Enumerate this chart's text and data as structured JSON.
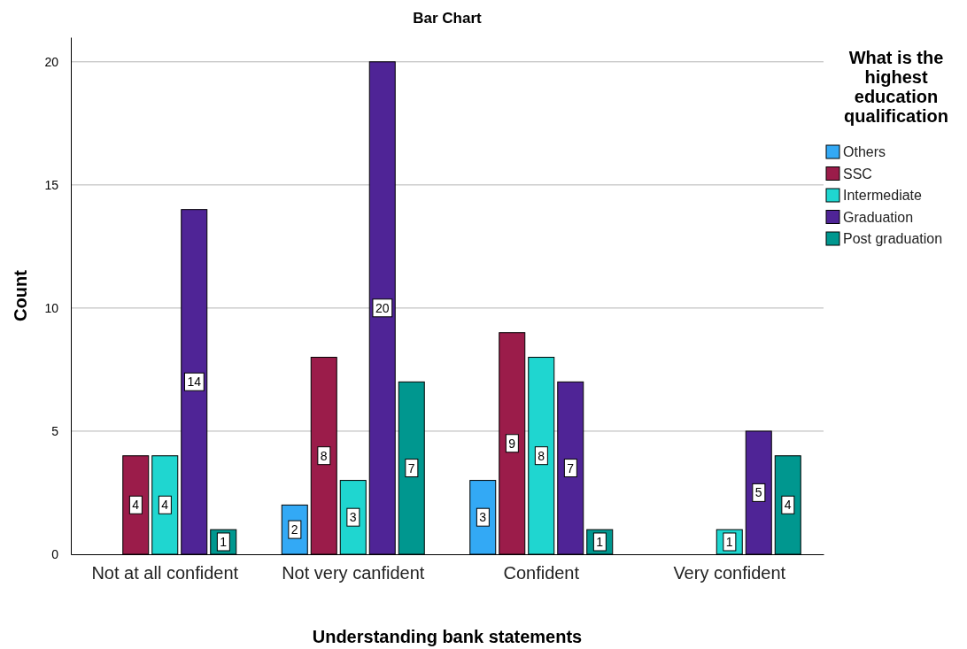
{
  "chart_data": {
    "type": "bar",
    "title": "Bar Chart",
    "xlabel": "Understanding bank statements",
    "ylabel": "Count",
    "legend_title": "What is the highest education qualification",
    "categories": [
      "Not at all confident",
      "Not very canfident",
      "Confident",
      "Very confident"
    ],
    "series": [
      {
        "name": "Others",
        "color": "#33a9f5",
        "values": [
          null,
          2,
          3,
          null
        ]
      },
      {
        "name": "SSC",
        "color": "#9b1c4a",
        "values": [
          4,
          8,
          9,
          null
        ]
      },
      {
        "name": "Intermediate",
        "color": "#1fd6d0",
        "values": [
          4,
          3,
          8,
          1
        ]
      },
      {
        "name": "Graduation",
        "color": "#4f2496",
        "values": [
          14,
          20,
          7,
          5
        ]
      },
      {
        "name": "Post graduation",
        "color": "#00978f",
        "values": [
          1,
          7,
          1,
          4
        ]
      }
    ],
    "ylim": [
      0,
      21
    ],
    "yticks": [
      0,
      5,
      10,
      15,
      20
    ],
    "grid": "y",
    "legend": "right",
    "data_labels": true
  }
}
